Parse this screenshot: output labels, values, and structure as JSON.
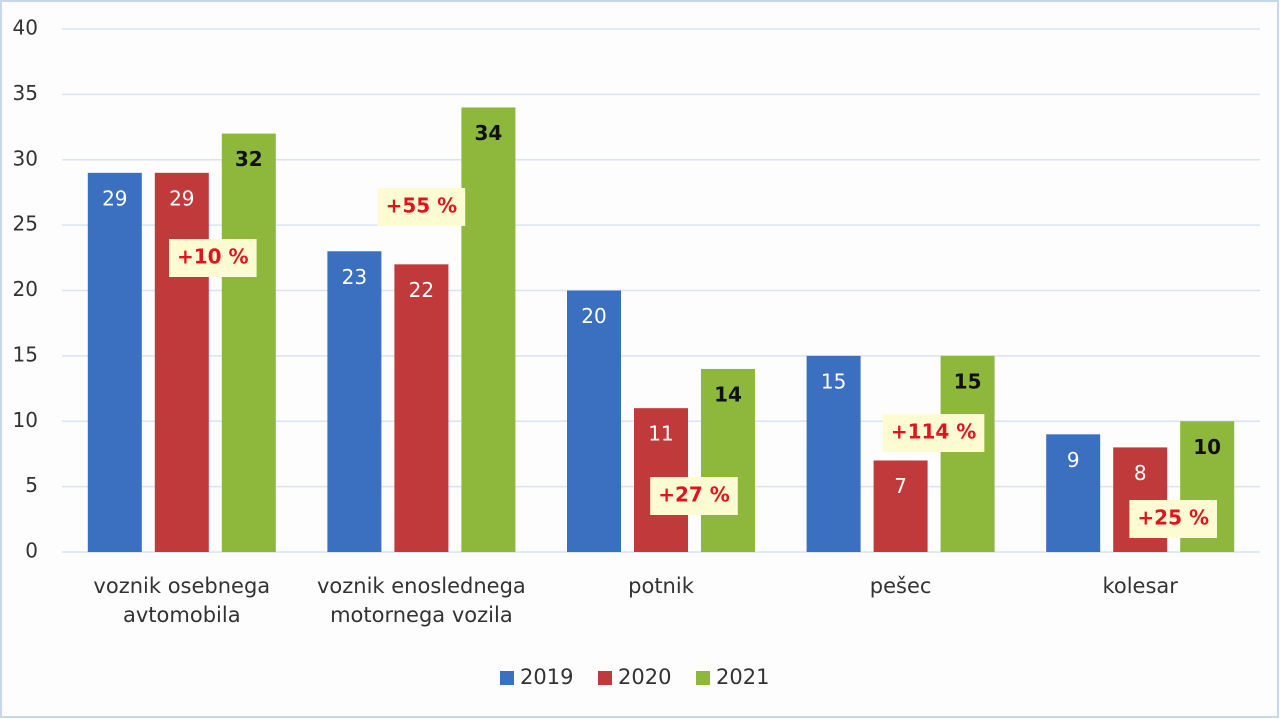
{
  "chart_data": {
    "type": "bar",
    "categories": [
      "voznik osebnega avtomobila",
      "voznik enoslednega motornega vozila",
      "potnik",
      "pešec",
      "kolesar"
    ],
    "series": [
      {
        "name": "2019",
        "color": "#3b6fbf",
        "values": [
          29,
          23,
          20,
          15,
          9
        ]
      },
      {
        "name": "2020",
        "color": "#c0393b",
        "values": [
          29,
          22,
          11,
          7,
          8
        ]
      },
      {
        "name": "2021",
        "color": "#8db83c",
        "values": [
          32,
          34,
          14,
          15,
          10
        ]
      }
    ],
    "annotations": [
      "+10 %",
      "+55 %",
      "+27 %",
      "+114 %",
      "+25 %"
    ],
    "ylim": [
      0,
      40
    ],
    "yticks": [
      0,
      5,
      10,
      15,
      20,
      25,
      30,
      35,
      40
    ],
    "grid": true,
    "legend": "bottom"
  }
}
